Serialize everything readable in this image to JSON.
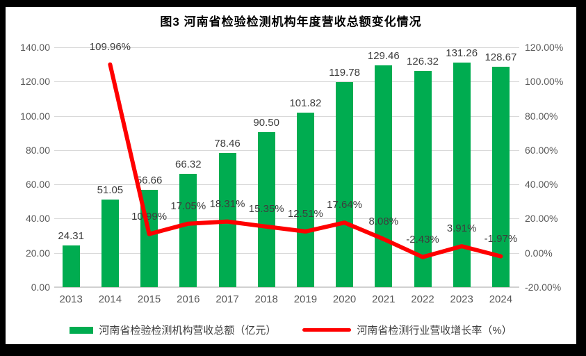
{
  "title": "图3  河南省检验检测机构年度营收总额变化情况",
  "chart_data": {
    "type": "bar+line combo",
    "title": "图3  河南省检验检测机构年度营收总额变化情况",
    "categories": [
      "2013",
      "2014",
      "2015",
      "2016",
      "2017",
      "2018",
      "2019",
      "2020",
      "2021",
      "2022",
      "2023",
      "2024"
    ],
    "series": [
      {
        "name": "河南省检验检测机构营收总额（亿元）",
        "type": "bar",
        "axis": "left",
        "color": "#00ac50",
        "values": [
          24.31,
          51.05,
          56.66,
          66.32,
          78.46,
          90.5,
          101.82,
          119.78,
          129.46,
          126.32,
          131.26,
          128.67
        ],
        "labels": [
          "24.31",
          "51.05",
          "56.66",
          "66.32",
          "78.46",
          "90.50",
          "101.82",
          "119.78",
          "129.46",
          "126.32",
          "131.26",
          "128.67"
        ]
      },
      {
        "name": "河南省检测行业营收增长率（%）",
        "type": "line",
        "axis": "right",
        "color": "#ff0000",
        "values": [
          null,
          109.96,
          10.99,
          17.05,
          18.31,
          15.35,
          12.51,
          17.64,
          8.08,
          -2.43,
          3.91,
          -1.97
        ],
        "labels": [
          null,
          "109.96%",
          "10.99%",
          "17.05%",
          "18.31%",
          "15.35%",
          "12.51%",
          "17.64%",
          "8.08%",
          "-2.43%",
          "3.91%",
          "-1.97%"
        ]
      }
    ],
    "left_axis": {
      "min": 0,
      "max": 140,
      "step": 20,
      "ticks": [
        "140.00",
        "120.00",
        "100.00",
        "80.00",
        "60.00",
        "40.00",
        "20.00",
        "0.00"
      ]
    },
    "right_axis": {
      "min": -20,
      "max": 120,
      "step": 20,
      "ticks": [
        "120.00%",
        "100.00%",
        "80.00%",
        "60.00%",
        "40.00%",
        "20.00%",
        "0.00%",
        "-20.00%"
      ]
    },
    "grid": true,
    "legend_position": "bottom"
  },
  "legend": {
    "items": [
      {
        "label": "河南省检验检测机构营收总额（亿元）",
        "swatch": "bar",
        "color": "#00ac50"
      },
      {
        "label": "河南省检测行业营收增长率（%）",
        "swatch": "line",
        "color": "#ff0000"
      }
    ]
  },
  "colors": {
    "bar_green": "#00ac50",
    "line_red": "#ff0000",
    "gridline": "#d9d9d9",
    "axis_text": "#595959",
    "label_text": "#3d3d3d",
    "frame_border": "#000000"
  }
}
